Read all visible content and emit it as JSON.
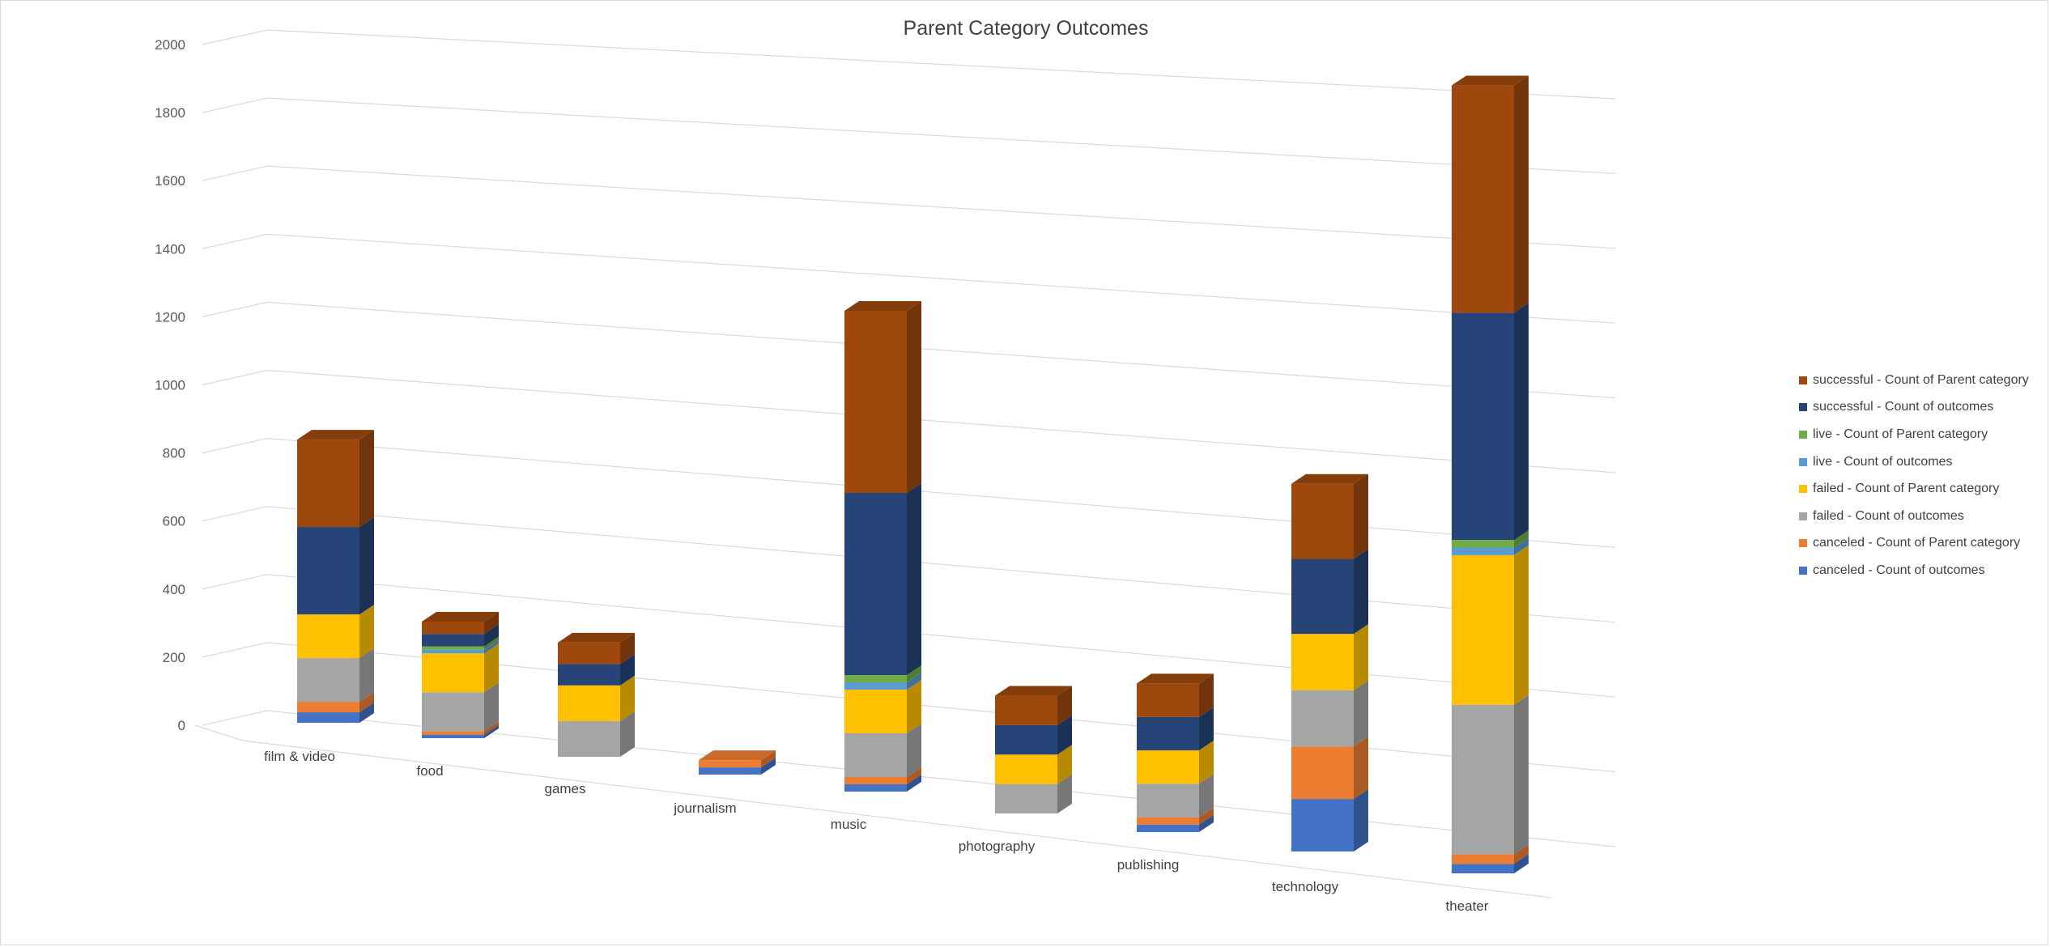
{
  "chart_data": {
    "type": "bar",
    "stacked": true,
    "three_d": true,
    "title": "Parent Category Outcomes",
    "categories": [
      "film & video",
      "food",
      "games",
      "journalism",
      "music",
      "photography",
      "publishing",
      "technology",
      "theater"
    ],
    "y_ticks": [
      "0",
      "200",
      "400",
      "600",
      "800",
      "1000",
      "1200",
      "1400",
      "1600",
      "1800",
      "2000"
    ],
    "ylim": [
      0,
      2000
    ],
    "grid": true,
    "legend_position": "right",
    "series": [
      {
        "name": "canceled - Count of outcomes",
        "color": "#4472C4",
        "values": [
          30,
          10,
          0,
          20,
          20,
          0,
          20,
          140,
          25
        ]
      },
      {
        "name": "canceled - Count of Parent category",
        "color": "#ED7D31",
        "values": [
          30,
          10,
          0,
          20,
          20,
          0,
          20,
          140,
          25
        ]
      },
      {
        "name": "failed - Count of outcomes",
        "color": "#A5A5A5",
        "values": [
          125,
          110,
          100,
          0,
          120,
          80,
          90,
          150,
          395
        ]
      },
      {
        "name": "failed - Count of Parent category",
        "color": "#FFC000",
        "values": [
          125,
          110,
          100,
          0,
          120,
          80,
          90,
          150,
          395
        ]
      },
      {
        "name": "live - Count of outcomes",
        "color": "#5B9BD5",
        "values": [
          0,
          10,
          0,
          0,
          20,
          0,
          0,
          0,
          20
        ]
      },
      {
        "name": "live - Count of Parent category",
        "color": "#70AD47",
        "values": [
          0,
          10,
          0,
          0,
          20,
          0,
          0,
          0,
          20
        ]
      },
      {
        "name": "successful - Count of outcomes",
        "color": "#264478",
        "values": [
          250,
          35,
          60,
          0,
          500,
          80,
          90,
          200,
          600
        ]
      },
      {
        "name": "successful - Count of Parent category",
        "color": "#9E480E",
        "values": [
          250,
          35,
          60,
          0,
          500,
          80,
          90,
          200,
          600
        ]
      }
    ]
  }
}
